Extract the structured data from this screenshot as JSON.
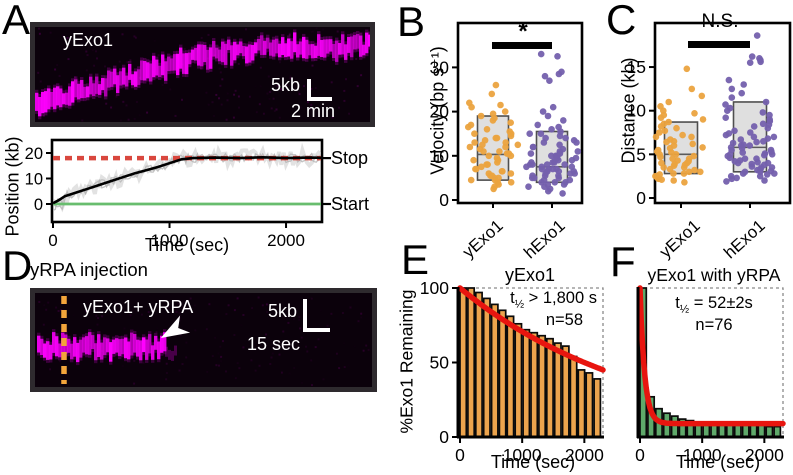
{
  "colors": {
    "magenta": "#ff00ff",
    "kymo_bg": "#0b010b",
    "kymo_border": "#2e2a2e",
    "orange": "#eba33f",
    "purple": "#7460ad",
    "box_fill": "#dcdcdc",
    "box_stroke": "#4f4f4f",
    "stop_red": "#d9473e",
    "start_green": "#68bd6e",
    "fit_red": "#e8150f",
    "bar_orange": "#eca44d",
    "bar_green": "#5fa96a",
    "injection_orange": "#f3a53b"
  },
  "panels": {
    "a": {
      "letter": "A",
      "kymo": {
        "label": "yExo1",
        "scale_v": "5kb",
        "scale_h": "2 min"
      }
    },
    "b": {
      "letter": "B"
    },
    "c": {
      "letter": "C"
    },
    "d": {
      "letter": "D",
      "heading": "yRPA injection",
      "kymo": {
        "label": "yExo1+ yRPA",
        "scale_v": "5kb",
        "scale_h": "15 sec"
      }
    },
    "e": {
      "letter": "E"
    },
    "f": {
      "letter": "F"
    }
  },
  "chart_data": [
    {
      "id": "position_vs_time",
      "panel": "A",
      "type": "line",
      "xlabel": "Time (sec)",
      "ylabel": "Position (kb)",
      "xlim": [
        0,
        2300
      ],
      "ylim": [
        -7,
        25
      ],
      "xticks": [
        0,
        1000,
        2000
      ],
      "yticks": [
        0,
        10,
        20
      ],
      "mean_trace": {
        "t": [
          0,
          50,
          100,
          200,
          300,
          400,
          500,
          600,
          700,
          800,
          900,
          1000,
          1100,
          1200,
          1400,
          1600,
          1800,
          2000,
          2200,
          2300
        ],
        "kb": [
          0.3,
          1.5,
          3,
          4.5,
          6,
          7.5,
          9,
          10.5,
          12,
          13.2,
          14.5,
          16,
          17.5,
          18,
          18.2,
          18,
          18.3,
          18,
          18.2,
          18.1
        ]
      },
      "stop_line": {
        "value": 18,
        "label": "Stop",
        "style": "dashed"
      },
      "start_line": {
        "value": 0,
        "label": "Start",
        "style": "solid"
      },
      "n_background_traces": 3
    },
    {
      "id": "velocity",
      "panel": "B",
      "type": "scatter-box",
      "ylabel": "Velocity (bp s⁻¹)",
      "ylim": [
        0,
        40
      ],
      "yticks": [
        0,
        10,
        20,
        30
      ],
      "significance": "*",
      "groups": [
        {
          "label": "yExo1",
          "n": 58,
          "box": {
            "q1": 4.5,
            "median": 10.3,
            "q3": 19
          },
          "values": [
            2.5,
            3,
            3.5,
            4,
            4,
            4.5,
            4.5,
            5,
            5,
            5.5,
            5.5,
            6,
            6,
            6.5,
            6.5,
            7,
            7,
            7.5,
            8,
            8,
            8.5,
            9,
            9,
            9.5,
            10,
            10,
            10.5,
            10.5,
            11,
            11,
            11.5,
            12,
            12,
            12.5,
            12.5,
            13,
            13,
            13.5,
            14,
            14,
            14.5,
            15,
            15,
            15.5,
            16,
            16.5,
            17,
            17.5,
            18,
            18.5,
            19,
            19.5,
            20,
            21,
            21.5,
            22,
            24,
            26
          ]
        },
        {
          "label": "hExo1",
          "n": 76,
          "box": {
            "q1": 4,
            "median": 7.5,
            "q3": 15.5
          },
          "values": [
            1.5,
            2,
            2.5,
            3,
            3,
            3.5,
            3.5,
            4,
            4,
            4,
            4.5,
            4.5,
            5,
            5,
            5,
            5.5,
            5.5,
            5.5,
            6,
            6,
            6,
            6.5,
            6.5,
            6.5,
            7,
            7,
            7,
            7,
            7.5,
            7.5,
            7.5,
            8,
            8,
            8,
            8,
            8.5,
            8.5,
            8.5,
            9,
            9,
            9,
            9.5,
            9.5,
            10,
            10,
            10,
            10.5,
            10.5,
            11,
            11,
            11.5,
            12,
            12,
            12.5,
            13,
            13,
            13.5,
            14,
            14,
            14.5,
            15,
            15,
            15.5,
            16,
            16.5,
            17,
            18,
            19,
            20,
            21,
            27,
            28,
            28.5,
            29,
            32.5,
            33
          ]
        }
      ]
    },
    {
      "id": "distance",
      "panel": "C",
      "type": "scatter-box",
      "ylabel": "Distance (kb)",
      "ylim": [
        0,
        20
      ],
      "yticks": [
        0,
        5,
        10,
        15
      ],
      "significance": "N.S.",
      "groups": [
        {
          "label": "yExo1",
          "n": 58,
          "box": {
            "q1": 2.8,
            "median": 5,
            "q3": 8.7
          },
          "values": [
            1.8,
            2,
            2.2,
            2.3,
            2.5,
            2.5,
            2.7,
            2.8,
            2.8,
            3,
            3,
            3.2,
            3.3,
            3.5,
            3.5,
            3.7,
            3.8,
            4,
            4,
            4.2,
            4.3,
            4.5,
            4.5,
            4.7,
            4.8,
            5,
            5,
            5.2,
            5.3,
            5.5,
            5.7,
            5.8,
            6,
            6.2,
            6.4,
            6.5,
            6.7,
            7,
            7,
            7.2,
            7.5,
            7.7,
            8,
            8.2,
            8.5,
            8.7,
            9,
            9.2,
            9.5,
            9.7,
            10,
            10.5,
            11,
            11.7,
            12.5,
            14.8,
            2.1,
            3.9
          ]
        },
        {
          "label": "hExo1",
          "n": 76,
          "box": {
            "q1": 3,
            "median": 5.8,
            "q3": 11
          },
          "values": [
            1.9,
            2,
            2.2,
            2.3,
            2.5,
            2.5,
            2.7,
            2.8,
            2.8,
            3,
            3,
            3.1,
            3.2,
            3.3,
            3.5,
            3.5,
            3.6,
            3.8,
            3.9,
            4,
            4,
            4.1,
            4.2,
            4.3,
            4.5,
            4.5,
            4.6,
            4.8,
            4.9,
            5,
            5,
            5.1,
            5.2,
            5.3,
            5.5,
            5.5,
            5.7,
            5.8,
            6,
            6,
            6.1,
            6.3,
            6.4,
            6.5,
            6.7,
            6.8,
            7,
            7,
            7.2,
            7.4,
            7.5,
            7.7,
            8,
            8.2,
            8.4,
            8.5,
            8.8,
            9,
            9.2,
            9.5,
            9.8,
            10,
            10.3,
            10.7,
            11,
            11.5,
            12,
            12.5,
            13,
            13.5,
            15.5,
            15.6,
            15.8,
            16,
            16.2,
            18.6
          ]
        }
      ]
    },
    {
      "id": "survival_yexo1",
      "panel": "E",
      "type": "bar",
      "title": "yExo1",
      "xlabel": "Time (sec)",
      "ylabel": "%Exo1 Remaining",
      "xlim": [
        0,
        2300
      ],
      "ylim": [
        0,
        100
      ],
      "xticks": [
        0,
        1000,
        2000
      ],
      "yticks": [
        0,
        50,
        100
      ],
      "bin_width_sec": 128,
      "values": [
        100,
        100,
        97,
        93,
        89,
        85,
        81,
        76,
        72,
        70,
        68,
        66,
        63,
        61,
        54,
        45,
        43,
        39
      ],
      "fit": {
        "type": "exponential",
        "t_half_sec": 2000,
        "plateau": 0,
        "amplitude": 100
      },
      "annotations": {
        "t_half": {
          "pre": "t",
          "sub": "½",
          "post": " > 1,800 s"
        },
        "n": "n=58"
      }
    },
    {
      "id": "survival_yexo1_yrpa",
      "panel": "F",
      "type": "bar",
      "title": "yExo1 with yRPA",
      "xlabel": "Time (sec)",
      "xlim": [
        0,
        2300
      ],
      "ylim": [
        0,
        100
      ],
      "xticks": [
        0,
        1000,
        2000
      ],
      "bin_width_sec": 128,
      "values": [
        100,
        27,
        19,
        16,
        14,
        12,
        11,
        10,
        10,
        9,
        9,
        8,
        8,
        8,
        8,
        8,
        7,
        7
      ],
      "fit": {
        "type": "exponential",
        "t_half_sec": 52,
        "plateau": 9,
        "amplitude": 91
      },
      "annotations": {
        "t_half": {
          "pre": "t",
          "sub": "½",
          "post": " = 52±2s"
        },
        "n": "n=76"
      }
    }
  ]
}
